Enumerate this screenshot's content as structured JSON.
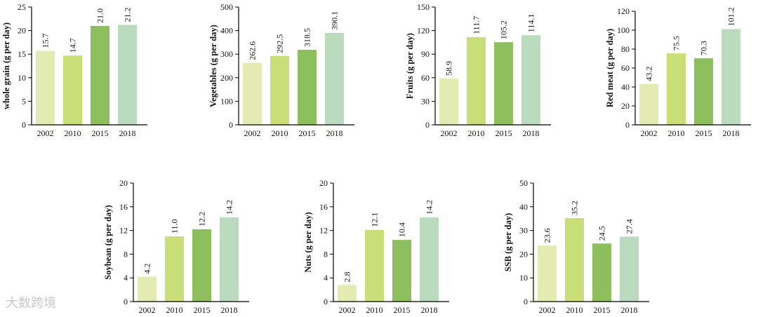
{
  "colors": [
    "#e3ebb2",
    "#c9de78",
    "#8ebf5e",
    "#badbbd"
  ],
  "watermark": "大数跨境",
  "chart_data": [
    {
      "type": "bar",
      "ylabel": "whole grain (g per day)",
      "categories": [
        "2002",
        "2010",
        "2015",
        "2018"
      ],
      "values": [
        15.7,
        14.7,
        21.0,
        21.2
      ],
      "value_labels": [
        "15.7",
        "14.7",
        "21.0",
        "21.2"
      ],
      "ylim": [
        0,
        25
      ],
      "yticks": [
        0,
        5,
        10,
        15,
        20,
        25
      ]
    },
    {
      "type": "bar",
      "ylabel": "Vegetables (g per day)",
      "categories": [
        "2002",
        "2010",
        "2015",
        "2018"
      ],
      "values": [
        262.6,
        292.5,
        318.5,
        390.1
      ],
      "value_labels": [
        "262.6",
        "292.5",
        "318.5",
        "390.1"
      ],
      "ylim": [
        0,
        500
      ],
      "yticks": [
        0,
        100,
        200,
        300,
        400,
        500
      ]
    },
    {
      "type": "bar",
      "ylabel": "Fruits (g per day)",
      "categories": [
        "2002",
        "2010",
        "2015",
        "2018"
      ],
      "values": [
        58.9,
        111.7,
        105.2,
        114.1
      ],
      "value_labels": [
        "58.9",
        "111.7",
        "105.2",
        "114.1"
      ],
      "ylim": [
        0,
        150
      ],
      "yticks": [
        0,
        30,
        60,
        90,
        120,
        150
      ]
    },
    {
      "type": "bar",
      "ylabel": "Red meat (g per day)",
      "categories": [
        "2002",
        "2010",
        "2015",
        "2018"
      ],
      "values": [
        43.2,
        75.5,
        70.3,
        101.2
      ],
      "value_labels": [
        "43.2",
        "75.5",
        "70.3",
        "101.2"
      ],
      "ylim": [
        0,
        120
      ],
      "yticks": [
        0,
        20,
        40,
        60,
        80,
        100,
        120
      ]
    },
    {
      "type": "bar",
      "ylabel": "Soybean (g per day)",
      "categories": [
        "2002",
        "2010",
        "2015",
        "2018"
      ],
      "values": [
        4.2,
        11.0,
        12.2,
        14.2
      ],
      "value_labels": [
        "4.2",
        "11.0",
        "12.2",
        "14.2"
      ],
      "ylim": [
        0,
        20
      ],
      "yticks": [
        0,
        4,
        8,
        12,
        16,
        20
      ]
    },
    {
      "type": "bar",
      "ylabel": "Nuts (g per day)",
      "categories": [
        "2002",
        "2010",
        "2015",
        "2018"
      ],
      "values": [
        2.8,
        12.1,
        10.4,
        14.2
      ],
      "value_labels": [
        "2.8",
        "12.1",
        "10.4",
        "14.2"
      ],
      "ylim": [
        0,
        20
      ],
      "yticks": [
        0,
        4,
        8,
        12,
        16,
        20
      ]
    },
    {
      "type": "bar",
      "ylabel": "SSB (g per day)",
      "categories": [
        "2002",
        "2010",
        "2015",
        "2018"
      ],
      "values": [
        23.6,
        35.2,
        24.5,
        27.4
      ],
      "value_labels": [
        "23.6",
        "35.2",
        "24.5",
        "27.4"
      ],
      "ylim": [
        0,
        50
      ],
      "yticks": [
        0,
        10,
        20,
        30,
        40,
        50
      ]
    }
  ]
}
